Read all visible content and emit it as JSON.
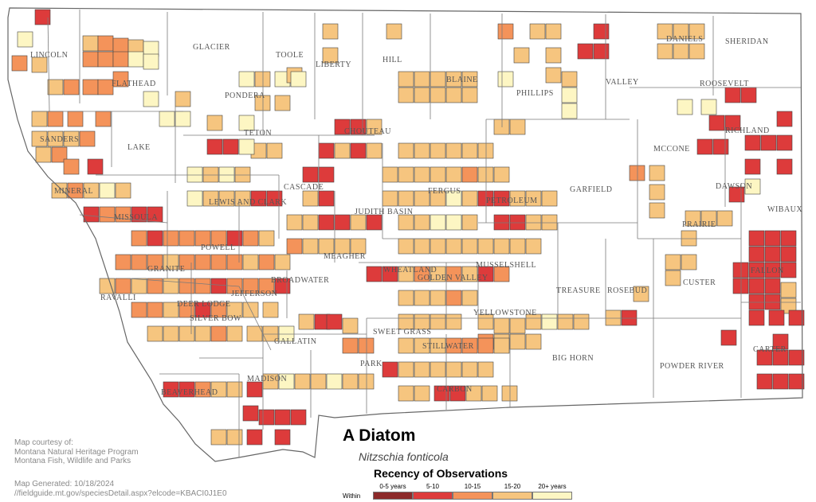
{
  "map": {
    "title": "A Diatom",
    "scientific_name": "Nitzschia fonticola",
    "counties": [
      "LINCOLN",
      "FLATHEAD",
      "GLACIER",
      "TOOLE",
      "LIBERTY",
      "HILL",
      "BLAINE",
      "PHILLIPS",
      "VALLEY",
      "DANIELS",
      "SHERIDAN",
      "ROOSEVELT",
      "PONDERA",
      "TETON",
      "CHOUTEAU",
      "RICHLAND",
      "MCCONE",
      "SANDERS",
      "LAKE",
      "MINERAL",
      "CASCADE",
      "GARFIELD",
      "DAWSON",
      "WIBAUX",
      "MISSOULA",
      "LEWIS AND CLARK",
      "JUDITH BASIN",
      "FERGUS",
      "PETROLEUM",
      "PRAIRIE",
      "POWELL",
      "MEAGHER",
      "MUSSELSHELL",
      "GRANITE",
      "WHEATLAND",
      "GOLDEN VALLEY",
      "BROADWATER",
      "FALLON",
      "CUSTER",
      "RAVALLI",
      "DEER LODGE",
      "JEFFERSON",
      "ROSEBUD",
      "TREASURE",
      "SILVER BOW",
      "YELLOWSTONE",
      "SWEET GRASS",
      "BIG HORN",
      "CARTER",
      "GALLATIN",
      "STILLWATER",
      "PARK",
      "POWDER RIVER",
      "MADISON",
      "BEAVERHEAD",
      "CARBON"
    ]
  },
  "legend": {
    "title": "Recency of Observations",
    "within_label": "Within",
    "bins": [
      {
        "label": "0-5 years",
        "color": "#8c2a2a"
      },
      {
        "label": "5-10",
        "color": "#dd3b3b"
      },
      {
        "label": "10-15",
        "color": "#f4935a"
      },
      {
        "label": "15-20",
        "color": "#f6c57f"
      },
      {
        "label": "20+ years",
        "color": "#fdf6c3"
      }
    ]
  },
  "credits": {
    "line1": "Map courtesy of:",
    "line2": "Montana Natural Heritage Program",
    "line3": "Montana Fish, Wildlife and Parks",
    "generated": "Map Generated: 10/18/2024",
    "url": "//fieldguide.mt.gov/speciesDetail.aspx?elcode=KBACI0J1E0"
  }
}
